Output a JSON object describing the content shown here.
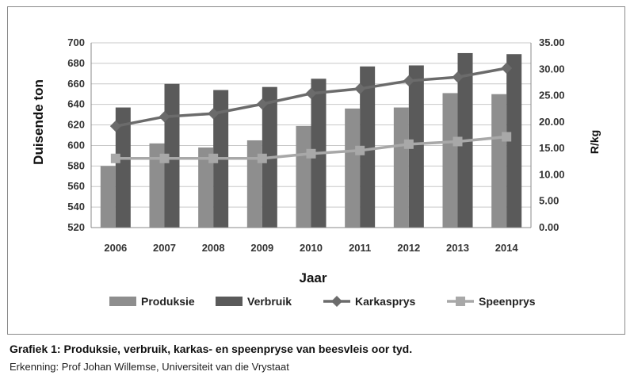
{
  "chart_data": {
    "type": "bar",
    "categories": [
      "2006",
      "2007",
      "2008",
      "2009",
      "2010",
      "2011",
      "2012",
      "2013",
      "2014"
    ],
    "xlabel": "Jaar",
    "ylabel": "Duisende ton",
    "y2label": "R/kg",
    "ylim": [
      520,
      700
    ],
    "y_ticks": [
      "520",
      "540",
      "560",
      "580",
      "600",
      "620",
      "640",
      "660",
      "680",
      "700"
    ],
    "y2lim": [
      0,
      35
    ],
    "y2_ticks": [
      "0.00",
      "5.00",
      "10.00",
      "15.00",
      "20.00",
      "25.00",
      "30.00",
      "35.00"
    ],
    "grid": true,
    "legend_position": "bottom",
    "series": [
      {
        "name": "Produksie",
        "type": "bar",
        "axis": "left",
        "color": "#8e8e8e",
        "values": [
          580,
          602,
          598,
          605,
          619,
          636,
          637,
          651,
          650
        ]
      },
      {
        "name": "Verbruik",
        "type": "bar",
        "axis": "left",
        "color": "#5a5a5a",
        "values": [
          637,
          660,
          654,
          657,
          665,
          677,
          678,
          690,
          689
        ]
      },
      {
        "name": "Karkasprys",
        "type": "line",
        "axis": "right",
        "color": "#6b6b6b",
        "marker": "diamond",
        "values": [
          19.2,
          21.0,
          21.6,
          23.4,
          25.4,
          26.3,
          27.8,
          28.5,
          30.2
        ]
      },
      {
        "name": "Speenprys",
        "type": "line",
        "axis": "right",
        "color": "#a8a8a8",
        "marker": "square",
        "values": [
          13.1,
          13.1,
          13.1,
          13.1,
          14.0,
          14.6,
          15.8,
          16.3,
          17.2
        ]
      }
    ]
  },
  "caption": "Grafiek 1: Produksie, verbruik, karkas- en speenpryse van beesvleis oor tyd.",
  "credit": "Erkenning: Prof Johan Willemse, Universiteit van die Vrystaat"
}
